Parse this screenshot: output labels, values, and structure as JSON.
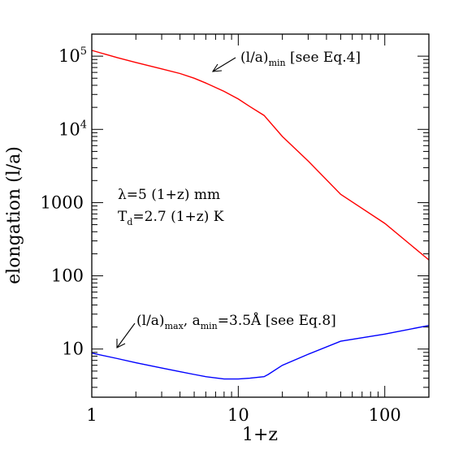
{
  "chart_data": {
    "type": "line",
    "xlabel": "1+z",
    "ylabel": "elongation  (l/a)",
    "xscale": "log",
    "yscale": "log",
    "xlim": [
      1,
      200
    ],
    "ylim": [
      2.2,
      200000
    ],
    "x_ticks": [
      {
        "value": 1,
        "label": "1"
      },
      {
        "value": 10,
        "label": "10"
      },
      {
        "value": 100,
        "label": "100"
      }
    ],
    "y_ticks": [
      {
        "value": 10,
        "label": "10"
      },
      {
        "value": 100,
        "label": "100"
      },
      {
        "value": 1000,
        "label": "1000"
      },
      {
        "value": 10000,
        "base": "10",
        "exp": "4"
      },
      {
        "value": 100000,
        "base": "10",
        "exp": "5"
      }
    ],
    "series": [
      {
        "color": "#ff0000",
        "x": [
          1,
          1.5,
          2,
          3,
          4,
          5,
          6,
          8,
          10,
          12,
          15,
          20,
          30,
          50,
          100,
          200
        ],
        "y": [
          120000,
          95000,
          82000,
          67000,
          58000,
          50000,
          43000,
          33000,
          26000,
          20500,
          15500,
          8000,
          3700,
          1300,
          520,
          165
        ]
      },
      {
        "color": "#0000ff",
        "x": [
          1,
          1.5,
          2,
          3,
          4,
          5,
          6,
          8,
          10,
          12,
          15,
          16,
          20,
          30,
          50,
          100,
          200
        ],
        "y": [
          8.8,
          7.4,
          6.5,
          5.5,
          4.9,
          4.5,
          4.2,
          3.9,
          3.9,
          4.0,
          4.2,
          4.5,
          6.0,
          8.5,
          12.8,
          16,
          21
        ]
      }
    ],
    "annotations": {
      "red": {
        "main": "(l/a)",
        "sub": "min",
        "rest": " [see Eq.4]"
      },
      "blue": {
        "main": "(l/a)",
        "sub": "max",
        "mid": ",  a",
        "sub2": "min",
        "rest": "=3.5Å [see Eq.8]"
      },
      "params": {
        "line1": "λ=5 (1+z) mm",
        "line2_main": "T",
        "line2_sub": "d",
        "line2_rest": "=2.7 (1+z) K"
      }
    }
  }
}
